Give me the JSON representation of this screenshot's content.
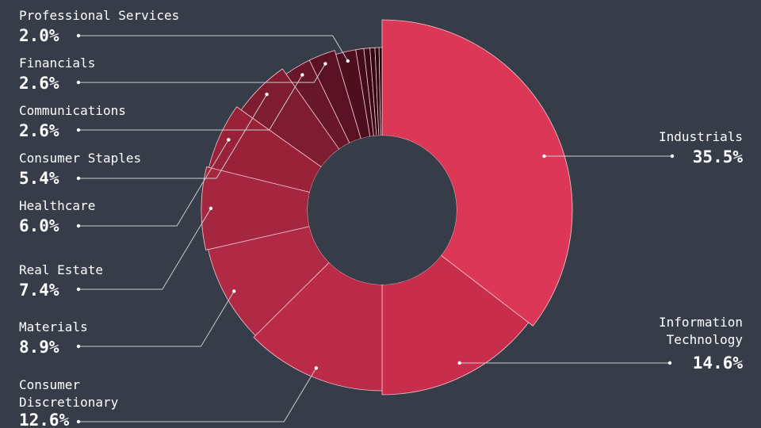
{
  "chart_data": {
    "type": "pie",
    "variant": "donut",
    "title": "",
    "slices": [
      {
        "label": "Industrials",
        "value": 35.5,
        "display": "35.5%",
        "color": "#dc3756"
      },
      {
        "label": "Information Technology",
        "label_lines": [
          "Information",
          "Technology"
        ],
        "value": 14.6,
        "display": "14.6%",
        "color": "#c82d4c"
      },
      {
        "label": "Consumer Discretionary",
        "label_lines": [
          "Consumer",
          "Discretionary"
        ],
        "value": 12.6,
        "display": "12.6%",
        "color": "#bb2a46"
      },
      {
        "label": "Materials",
        "value": 8.9,
        "display": "8.9%",
        "color": "#b02a45"
      },
      {
        "label": "Real Estate",
        "value": 7.4,
        "display": "7.4%",
        "color": "#a5273f"
      },
      {
        "label": "Healthcare",
        "value": 6.0,
        "display": "6.0%",
        "color": "#992239"
      },
      {
        "label": "Consumer Staples",
        "value": 5.4,
        "display": "5.4%",
        "color": "#7e1c31"
      },
      {
        "label": "Communications",
        "value": 2.6,
        "display": "2.6%",
        "color": "#681629"
      },
      {
        "label": "Financials",
        "value": 2.6,
        "display": "2.6%",
        "color": "#5a1124"
      },
      {
        "label": "Professional Services",
        "value": 2.0,
        "display": "2.0%",
        "color": "#4d0e1e"
      },
      {
        "label": "",
        "value": 0.8,
        "display": "",
        "color": "#440c1b"
      },
      {
        "label": "",
        "value": 0.6,
        "display": "",
        "color": "#3b0a17"
      },
      {
        "label": "",
        "value": 0.5,
        "display": "",
        "color": "#330813"
      },
      {
        "label": "",
        "value": 0.4,
        "display": "",
        "color": "#2a0610"
      },
      {
        "label": "",
        "value": 0.3,
        "display": "",
        "color": "#22050c"
      }
    ]
  }
}
